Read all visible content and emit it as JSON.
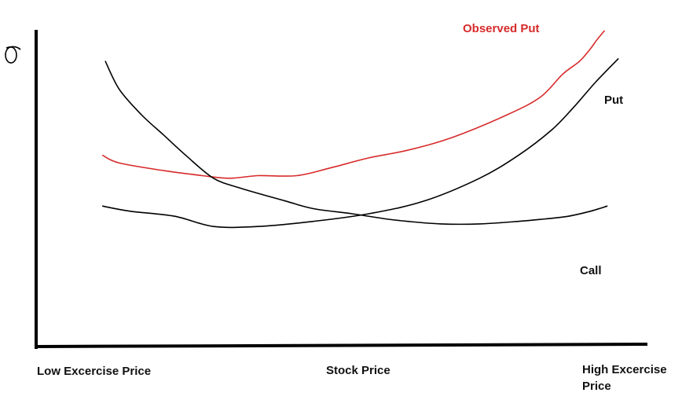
{
  "chart_data": {
    "type": "line",
    "ylabel": "σ",
    "x_tick_labels": [
      {
        "text": "Low Excercise Price",
        "at": 0.0
      },
      {
        "text": "Stock Price",
        "at": 0.5
      },
      {
        "text": "High Excercise Price",
        "at": 1.0
      }
    ],
    "grid": false,
    "series": [
      {
        "name": "Observed Put",
        "color": "#d72a2a",
        "points": [
          [
            0.07,
            0.25
          ],
          [
            0.1,
            0.22
          ],
          [
            0.18,
            0.19
          ],
          [
            0.25,
            0.17
          ],
          [
            0.3,
            0.16
          ],
          [
            0.35,
            0.17
          ],
          [
            0.42,
            0.17
          ],
          [
            0.48,
            0.2
          ],
          [
            0.55,
            0.24
          ],
          [
            0.62,
            0.27
          ],
          [
            0.7,
            0.32
          ],
          [
            0.8,
            0.41
          ],
          [
            0.86,
            0.48
          ],
          [
            0.9,
            0.57
          ],
          [
            0.93,
            0.62
          ],
          [
            0.95,
            0.67
          ],
          [
            0.96,
            0.7
          ],
          [
            0.975,
            0.74
          ]
        ]
      },
      {
        "name": "Put",
        "color": "#000000",
        "points": [
          [
            0.07,
            0.05
          ],
          [
            0.12,
            0.03
          ],
          [
            0.2,
            0.01
          ],
          [
            0.27,
            -0.03
          ],
          [
            0.35,
            -0.03
          ],
          [
            0.45,
            -0.01
          ],
          [
            0.55,
            0.02
          ],
          [
            0.65,
            0.07
          ],
          [
            0.75,
            0.16
          ],
          [
            0.82,
            0.25
          ],
          [
            0.88,
            0.35
          ],
          [
            0.92,
            0.44
          ],
          [
            0.96,
            0.54
          ],
          [
            1.0,
            0.63
          ]
        ]
      },
      {
        "name": "Call",
        "color": "#000000",
        "points": [
          [
            0.075,
            0.62
          ],
          [
            0.1,
            0.51
          ],
          [
            0.14,
            0.41
          ],
          [
            0.18,
            0.33
          ],
          [
            0.22,
            0.25
          ],
          [
            0.27,
            0.16
          ],
          [
            0.32,
            0.12
          ],
          [
            0.4,
            0.07
          ],
          [
            0.45,
            0.04
          ],
          [
            0.52,
            0.02
          ],
          [
            0.58,
            0.0
          ],
          [
            0.62,
            -0.01
          ],
          [
            0.68,
            -0.02
          ],
          [
            0.75,
            -0.02
          ],
          [
            0.82,
            -0.01
          ],
          [
            0.87,
            0.0
          ],
          [
            0.91,
            0.01
          ],
          [
            0.95,
            0.03
          ],
          [
            0.98,
            0.05
          ]
        ]
      }
    ]
  }
}
